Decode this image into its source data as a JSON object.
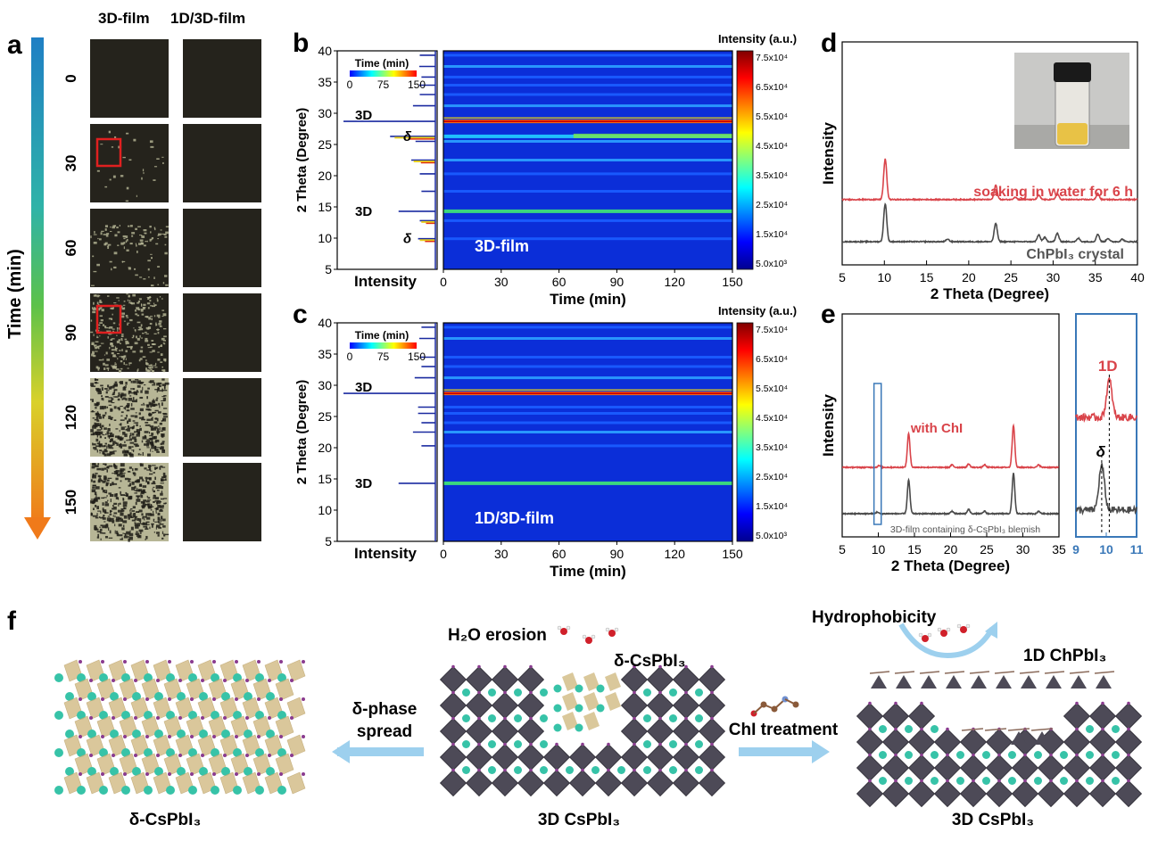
{
  "panel_labels": {
    "a": "a",
    "b": "b",
    "c": "c",
    "d": "d",
    "e": "e",
    "f": "f"
  },
  "panel_a": {
    "col_headers": [
      "3D-film",
      "1D/3D-film"
    ],
    "axis_label": "Time (min)",
    "times": [
      "0",
      "30",
      "60",
      "90",
      "120",
      "150"
    ],
    "film_3d_degradation": [
      0.0,
      0.03,
      0.12,
      0.35,
      0.65,
      0.6
    ],
    "film_1d3d_degradation": [
      0,
      0,
      0,
      0,
      0,
      0
    ],
    "highlight_rows": [
      1,
      3
    ],
    "colors": {
      "film_dark": "#25231c",
      "film_degraded": "#b7b696",
      "highlight": "#e02020"
    }
  },
  "chart_data": [
    {
      "id": "b",
      "type": "heatmap",
      "x": {
        "label": "Time (min)",
        "range": [
          0,
          150
        ],
        "ticks": [
          "0",
          "30",
          "60",
          "90",
          "120",
          "150"
        ]
      },
      "y": {
        "label": "2 Theta (Degree)",
        "range": [
          5,
          40
        ],
        "ticks": [
          "5",
          "10",
          "15",
          "20",
          "25",
          "30",
          "35",
          "40"
        ]
      },
      "side_plot": {
        "xlabel": "Intensity",
        "legend_title": "Time (min)",
        "legend_ticks": [
          "0",
          "75",
          "150"
        ]
      },
      "colorbar": {
        "title": "Intensity (a.u.)",
        "ticks": [
          "5.0x10³",
          "1.5x10⁴",
          "2.5x10⁴",
          "3.5x10⁴",
          "4.5x10⁴",
          "5.5x10⁴",
          "6.5x10⁴",
          "7.5x10⁴"
        ]
      },
      "annotation": "3D-film",
      "peak_labels": [
        {
          "text": "3D",
          "theta": 28.7
        },
        {
          "text": "δ",
          "theta": 26.3
        },
        {
          "text": "3D",
          "theta": 14.3
        },
        {
          "text": "δ",
          "theta": 9.9
        }
      ],
      "peaks": [
        {
          "theta": 14.3,
          "value": 0.35
        },
        {
          "theta": 28.7,
          "value": 1.0
        },
        {
          "theta": 26.3,
          "value": 0.45
        },
        {
          "theta": 37.5,
          "value": 0.22
        },
        {
          "theta": 31.2,
          "value": 0.18
        },
        {
          "theta": 22.5,
          "value": 0.2
        },
        {
          "theta": 25.5,
          "value": 0.15
        },
        {
          "theta": 34.5,
          "value": 0.12
        },
        {
          "theta": 33.0,
          "value": 0.1
        },
        {
          "theta": 9.9,
          "value": 0.12
        },
        {
          "theta": 12.8,
          "value": 0.1
        },
        {
          "theta": 20.3,
          "value": 0.1
        },
        {
          "theta": 17.5,
          "value": 0.08
        },
        {
          "theta": 39.3,
          "value": 0.1
        },
        {
          "theta": 35.8,
          "value": 0.08
        }
      ]
    },
    {
      "id": "c",
      "type": "heatmap",
      "x": {
        "label": "Time (min)",
        "range": [
          0,
          150
        ],
        "ticks": [
          "0",
          "30",
          "60",
          "90",
          "120",
          "150"
        ]
      },
      "y": {
        "label": "2 Theta (Degree)",
        "range": [
          5,
          40
        ],
        "ticks": [
          "5",
          "10",
          "15",
          "20",
          "25",
          "30",
          "35",
          "40"
        ]
      },
      "side_plot": {
        "xlabel": "Intensity",
        "legend_title": "Time (min)",
        "legend_ticks": [
          "0",
          "75",
          "150"
        ]
      },
      "colorbar": {
        "title": "Intensity (a.u.)",
        "ticks": [
          "5.0x10³",
          "1.5x10⁴",
          "2.5x10⁴",
          "3.5x10⁴",
          "4.5x10⁴",
          "5.5x10⁴",
          "6.5x10⁴",
          "7.5x10⁴"
        ]
      },
      "annotation": "1D/3D-film",
      "peak_labels": [
        {
          "text": "3D",
          "theta": 28.7
        },
        {
          "text": "3D",
          "theta": 14.3
        }
      ],
      "peaks": [
        {
          "theta": 14.3,
          "value": 0.35
        },
        {
          "theta": 28.7,
          "value": 1.0
        },
        {
          "theta": 37.5,
          "value": 0.2
        },
        {
          "theta": 31.2,
          "value": 0.16
        },
        {
          "theta": 22.5,
          "value": 0.18
        },
        {
          "theta": 25.5,
          "value": 0.12
        },
        {
          "theta": 26.5,
          "value": 0.12
        },
        {
          "theta": 34.5,
          "value": 0.1
        },
        {
          "theta": 33.0,
          "value": 0.08
        },
        {
          "theta": 20.3,
          "value": 0.08
        },
        {
          "theta": 24.0,
          "value": 0.08
        },
        {
          "theta": 39.3,
          "value": 0.08
        }
      ]
    },
    {
      "id": "d",
      "type": "line",
      "xlabel": "2 Theta (Degree)",
      "ylabel": "Intensity",
      "xlim": [
        5,
        40
      ],
      "xticks": [
        "5",
        "10",
        "15",
        "20",
        "25",
        "30",
        "35",
        "40"
      ],
      "series": [
        {
          "name": "soaking in water for 6 h",
          "color": "#d9444a",
          "offset": 0.5,
          "peaks": [
            {
              "x": 10.1,
              "y": 0.48
            },
            {
              "x": 23.2,
              "y": 0.17
            },
            {
              "x": 28.3,
              "y": 0.05
            },
            {
              "x": 30.5,
              "y": 0.07
            },
            {
              "x": 35.3,
              "y": 0.07
            },
            {
              "x": 25.5,
              "y": 0.03
            }
          ]
        },
        {
          "name": "ChPbI₃ crystal",
          "color": "#4a4a4a",
          "offset": 0.0,
          "peaks": [
            {
              "x": 10.1,
              "y": 0.45
            },
            {
              "x": 23.2,
              "y": 0.22
            },
            {
              "x": 17.5,
              "y": 0.03
            },
            {
              "x": 28.3,
              "y": 0.08
            },
            {
              "x": 29.0,
              "y": 0.05
            },
            {
              "x": 30.5,
              "y": 0.1
            },
            {
              "x": 33.0,
              "y": 0.04
            },
            {
              "x": 35.3,
              "y": 0.09
            },
            {
              "x": 36.5,
              "y": 0.04
            },
            {
              "x": 38.2,
              "y": 0.03
            }
          ]
        }
      ]
    },
    {
      "id": "e",
      "type": "line",
      "xlabel": "2 Theta (Degree)",
      "ylabel": "Intensity",
      "xlim": [
        5,
        35
      ],
      "xticks": [
        "5",
        "10",
        "15",
        "20",
        "25",
        "30",
        "35"
      ],
      "inset_xticks": [
        "9",
        "10",
        "11"
      ],
      "inset_labels": {
        "top": "1D",
        "bottom": "δ"
      },
      "series": [
        {
          "name": "with ChI",
          "color": "#d9444a",
          "offset": 0.55,
          "peaks": [
            {
              "x": 10.1,
              "y": 0.02
            },
            {
              "x": 14.2,
              "y": 0.4
            },
            {
              "x": 20.2,
              "y": 0.03
            },
            {
              "x": 22.5,
              "y": 0.04
            },
            {
              "x": 24.7,
              "y": 0.03
            },
            {
              "x": 28.7,
              "y": 0.5
            },
            {
              "x": 32.2,
              "y": 0.03
            }
          ]
        },
        {
          "name": "3D-film containing δ-CsPbI₃ blemish",
          "color": "#4a4a4a",
          "offset": 0.0,
          "peaks": [
            {
              "x": 9.85,
              "y": 0.02
            },
            {
              "x": 14.2,
              "y": 0.4
            },
            {
              "x": 20.2,
              "y": 0.03
            },
            {
              "x": 22.5,
              "y": 0.05
            },
            {
              "x": 24.7,
              "y": 0.03
            },
            {
              "x": 28.7,
              "y": 0.48
            },
            {
              "x": 32.2,
              "y": 0.03
            }
          ]
        }
      ]
    }
  ],
  "panel_f": {
    "left_caption": "δ-CsPbI₃",
    "center_caption": "3D CsPbI₃",
    "right_caption": "3D CsPbI₃",
    "arrow_left_line1": "δ-phase",
    "arrow_left_line2": "spread",
    "arrow_right": "ChI treatment",
    "h2o_label": "H₂O erosion",
    "delta_label": "δ-CsPbI₃",
    "hydrophobicity": "Hydrophobicity",
    "one_d_label": "1D ChPbI₃",
    "colors": {
      "octahedron": "#4d4a57",
      "cs": "#37c3a8",
      "delta": "#d4be8a",
      "iodine": "#8a3b8f",
      "arrow": "#9dd0ee"
    }
  }
}
